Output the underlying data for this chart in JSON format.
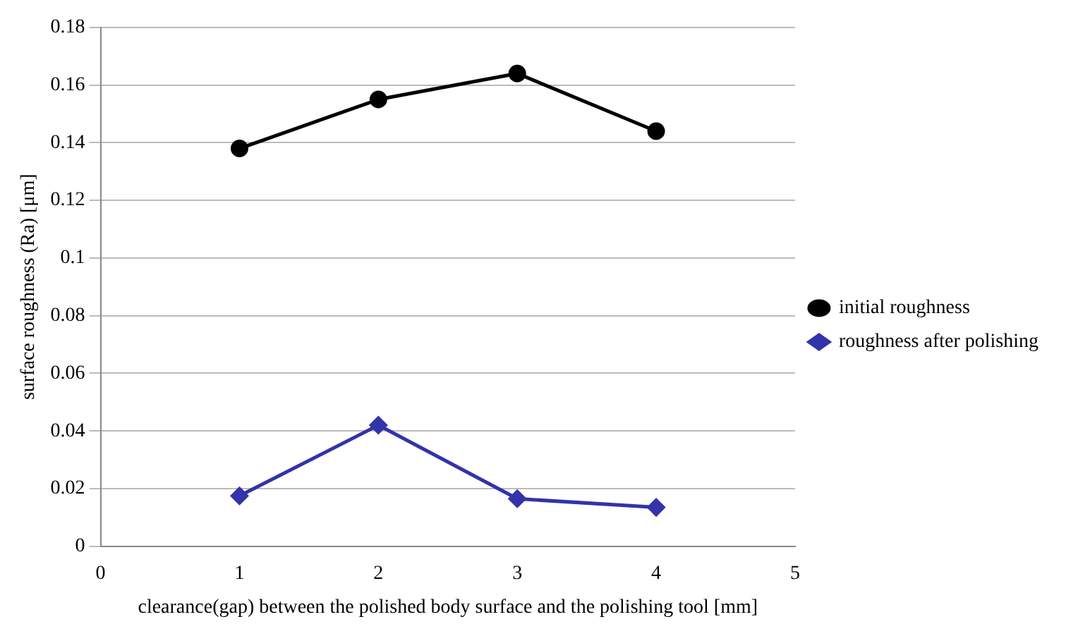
{
  "chart_data": {
    "type": "line",
    "xlabel": "clearance(gap) between the polished body surface and the polishing tool [mm]",
    "ylabel": "surface roughness (Ra) [μm]",
    "x": [
      1,
      2,
      3,
      4
    ],
    "series": [
      {
        "name": "initial roughness",
        "color": "#000000",
        "marker": "circle",
        "values": [
          0.138,
          0.155,
          0.164,
          0.144
        ]
      },
      {
        "name": "roughness after polishing",
        "color": "#3333aa",
        "marker": "diamond",
        "values": [
          0.0175,
          0.042,
          0.0165,
          0.0135
        ]
      }
    ],
    "xlim": [
      0,
      5
    ],
    "xticks": [
      0,
      1,
      2,
      3,
      4,
      5
    ],
    "ylim": [
      0,
      0.18
    ],
    "yticks": [
      0,
      0.02,
      0.04,
      0.06,
      0.08,
      0.1,
      0.12,
      0.14,
      0.16,
      0.18
    ],
    "grid": "y",
    "legend": "right",
    "line_style": "solid"
  }
}
